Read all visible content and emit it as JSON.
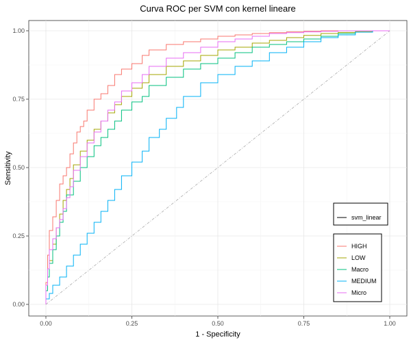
{
  "chart_data": {
    "type": "line",
    "title": "Curva ROC per SVM con kernel lineare",
    "xlabel": "1 - Specificity",
    "ylabel": "Sensitivity",
    "xlim": [
      0,
      1
    ],
    "ylim": [
      0,
      1
    ],
    "x_ticks": [
      "0.00",
      "0.25",
      "0.50",
      "0.75",
      "1.00"
    ],
    "y_ticks": [
      "0.00",
      "0.25",
      "0.50",
      "0.75",
      "1.00"
    ],
    "grid": true,
    "legend_position": "right",
    "linetype_legend": [
      "svm_linear"
    ],
    "reference_line": {
      "x": [
        0,
        1
      ],
      "y": [
        0,
        1
      ],
      "color": "#aaaaaa"
    },
    "series": [
      {
        "name": "HIGH",
        "color": "#F8766D",
        "x": [
          0,
          0.005,
          0.01,
          0.02,
          0.03,
          0.04,
          0.05,
          0.06,
          0.07,
          0.08,
          0.09,
          0.1,
          0.11,
          0.12,
          0.14,
          0.16,
          0.18,
          0.2,
          0.22,
          0.25,
          0.28,
          0.3,
          0.35,
          0.4,
          0.45,
          0.5,
          0.55,
          0.6,
          0.65,
          0.7,
          0.75,
          0.8,
          0.85,
          0.9,
          0.95,
          1.0
        ],
        "y": [
          0,
          0.08,
          0.18,
          0.27,
          0.32,
          0.38,
          0.44,
          0.47,
          0.5,
          0.55,
          0.59,
          0.63,
          0.65,
          0.67,
          0.71,
          0.75,
          0.77,
          0.8,
          0.84,
          0.86,
          0.88,
          0.91,
          0.93,
          0.95,
          0.96,
          0.97,
          0.98,
          0.985,
          0.99,
          0.993,
          0.996,
          0.998,
          1.0,
          1.0,
          1.0,
          1.0
        ]
      },
      {
        "name": "LOW",
        "color": "#A3A500",
        "x": [
          0,
          0.005,
          0.01,
          0.02,
          0.03,
          0.04,
          0.05,
          0.06,
          0.07,
          0.08,
          0.1,
          0.12,
          0.14,
          0.16,
          0.18,
          0.2,
          0.22,
          0.25,
          0.28,
          0.3,
          0.35,
          0.4,
          0.45,
          0.5,
          0.55,
          0.6,
          0.65,
          0.7,
          0.75,
          0.8,
          0.85,
          0.9,
          0.95,
          1.0
        ],
        "y": [
          0,
          0.05,
          0.1,
          0.16,
          0.22,
          0.28,
          0.33,
          0.38,
          0.42,
          0.46,
          0.51,
          0.56,
          0.6,
          0.64,
          0.67,
          0.7,
          0.73,
          0.76,
          0.79,
          0.81,
          0.84,
          0.87,
          0.89,
          0.91,
          0.93,
          0.94,
          0.955,
          0.965,
          0.975,
          0.983,
          0.99,
          0.994,
          0.997,
          1.0
        ]
      },
      {
        "name": "Macro",
        "color": "#00BF7D",
        "x": [
          0,
          0.005,
          0.01,
          0.02,
          0.03,
          0.04,
          0.05,
          0.06,
          0.08,
          0.1,
          0.12,
          0.14,
          0.16,
          0.18,
          0.2,
          0.22,
          0.25,
          0.28,
          0.3,
          0.35,
          0.4,
          0.45,
          0.5,
          0.55,
          0.6,
          0.65,
          0.7,
          0.75,
          0.8,
          0.85,
          0.9,
          0.95,
          1.0
        ],
        "y": [
          0,
          0.05,
          0.1,
          0.15,
          0.2,
          0.25,
          0.3,
          0.34,
          0.4,
          0.45,
          0.5,
          0.54,
          0.58,
          0.61,
          0.64,
          0.67,
          0.71,
          0.74,
          0.76,
          0.8,
          0.83,
          0.86,
          0.88,
          0.9,
          0.92,
          0.94,
          0.95,
          0.96,
          0.97,
          0.98,
          0.99,
          0.995,
          1.0
        ]
      },
      {
        "name": "MEDIUM",
        "color": "#00B0F6",
        "x": [
          0,
          0.01,
          0.02,
          0.04,
          0.06,
          0.08,
          0.1,
          0.12,
          0.14,
          0.16,
          0.18,
          0.2,
          0.22,
          0.25,
          0.28,
          0.3,
          0.33,
          0.35,
          0.38,
          0.4,
          0.45,
          0.5,
          0.55,
          0.6,
          0.65,
          0.7,
          0.75,
          0.8,
          0.85,
          0.9,
          0.95,
          1.0
        ],
        "y": [
          0,
          0.02,
          0.04,
          0.07,
          0.1,
          0.14,
          0.18,
          0.22,
          0.26,
          0.3,
          0.34,
          0.38,
          0.42,
          0.47,
          0.52,
          0.56,
          0.61,
          0.64,
          0.68,
          0.72,
          0.76,
          0.81,
          0.84,
          0.87,
          0.89,
          0.92,
          0.94,
          0.96,
          0.975,
          0.985,
          0.995,
          1.0
        ]
      },
      {
        "name": "Micro",
        "color": "#E76BF3",
        "x": [
          0,
          0.005,
          0.01,
          0.02,
          0.03,
          0.04,
          0.05,
          0.06,
          0.07,
          0.08,
          0.1,
          0.12,
          0.14,
          0.16,
          0.18,
          0.2,
          0.22,
          0.25,
          0.28,
          0.3,
          0.35,
          0.4,
          0.45,
          0.5,
          0.55,
          0.6,
          0.65,
          0.7,
          0.75,
          0.8,
          0.85,
          0.9,
          0.95,
          1.0
        ],
        "y": [
          0,
          0.07,
          0.13,
          0.2,
          0.24,
          0.28,
          0.31,
          0.35,
          0.39,
          0.43,
          0.49,
          0.54,
          0.59,
          0.63,
          0.67,
          0.71,
          0.74,
          0.78,
          0.81,
          0.84,
          0.87,
          0.9,
          0.92,
          0.94,
          0.96,
          0.97,
          0.98,
          0.99,
          0.993,
          0.996,
          0.998,
          1.0,
          1.0,
          1.0
        ]
      }
    ]
  }
}
